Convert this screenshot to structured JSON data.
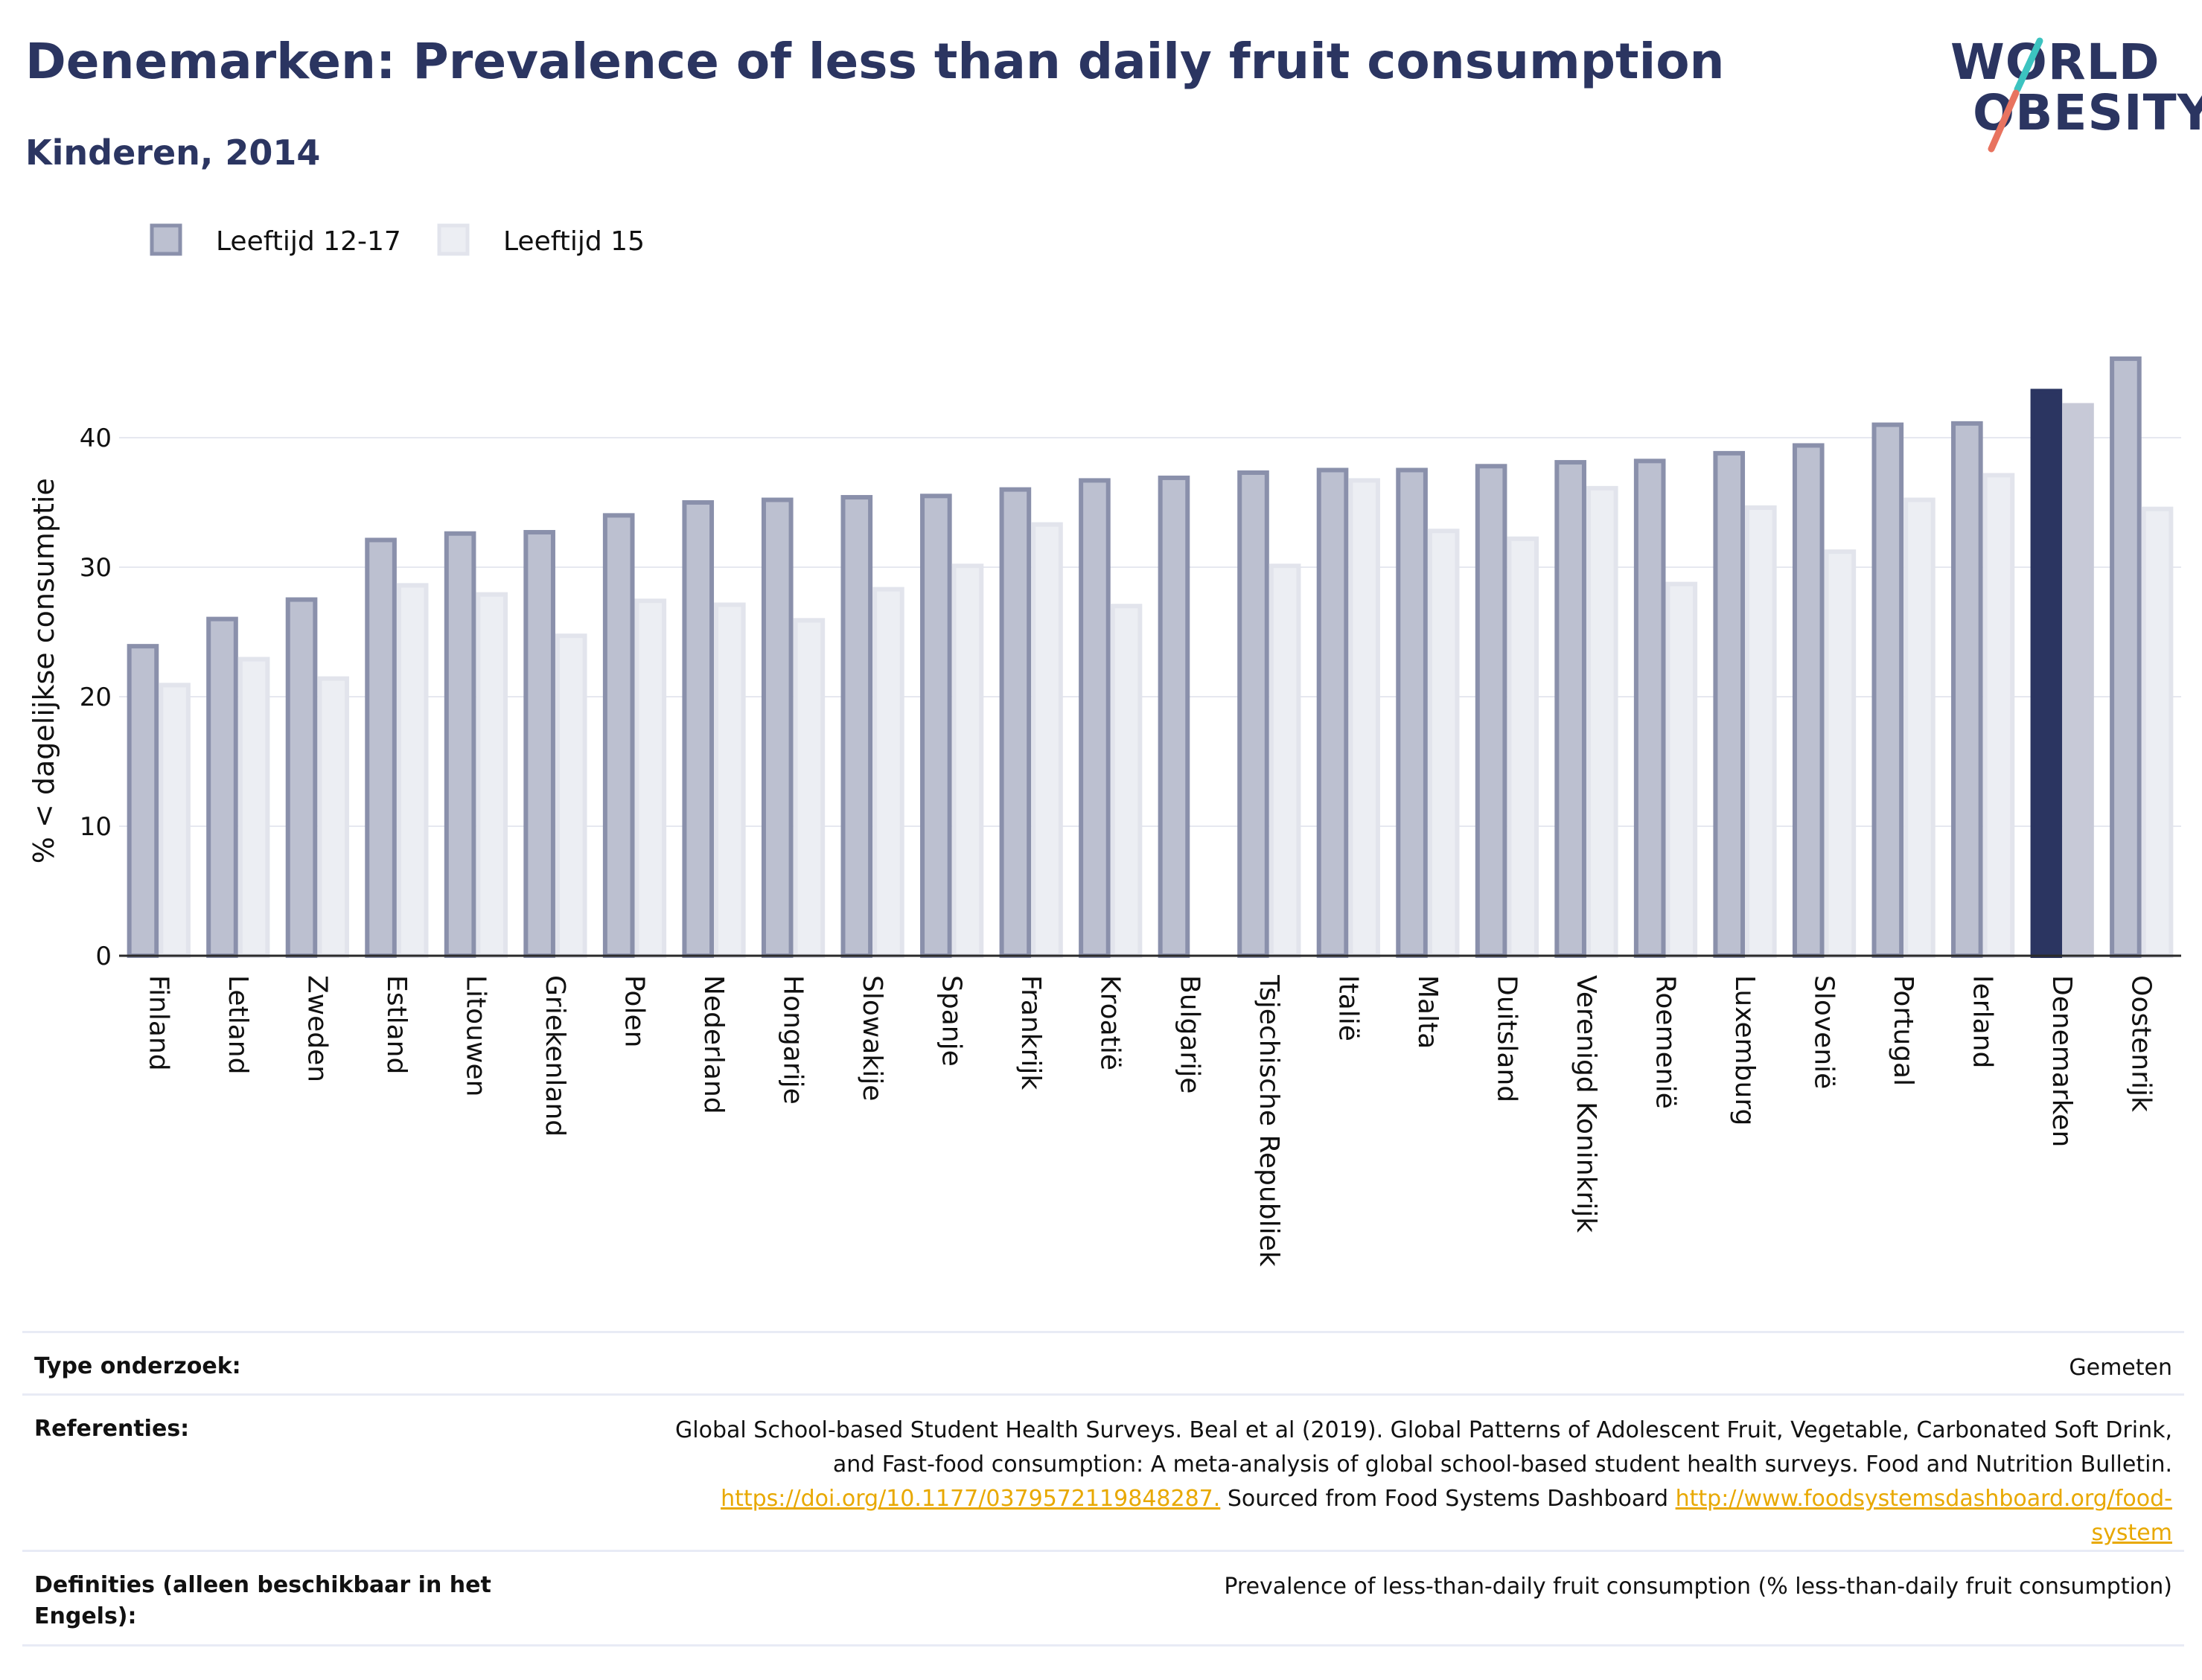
{
  "header": {
    "title": "Denemarken: Prevalence of less than daily fruit consumption",
    "subtitle": "Kinderen, 2014"
  },
  "logo": {
    "line1": "WORLD",
    "line2": "OBESITY",
    "colors": [
      "#2b3561",
      "#e8735f",
      "#3cc3c0"
    ]
  },
  "colors": {
    "series1_fill": "#bcc0d0",
    "series1_stroke": "#8a90ab",
    "series2_fill": "#eceef3",
    "series2_stroke": "#e2e4ec",
    "highlight1": "#2b3561",
    "highlight2": "#c7c9d7",
    "grid": "#e6e8f0",
    "axis": "#2a2a2a"
  },
  "chart_data": {
    "type": "bar",
    "ylabel": "% < dagelijkse consumptie",
    "ylim": [
      0,
      48
    ],
    "yticks": [
      0,
      10,
      20,
      30,
      40
    ],
    "legend_position": "top-left",
    "highlight_category": "Denemarken",
    "categories": [
      "Finland",
      "Letland",
      "Zweden",
      "Estland",
      "Litouwen",
      "Griekenland",
      "Polen",
      "Nederland",
      "Hongarije",
      "Slowakije",
      "Spanje",
      "Frankrijk",
      "Kroatië",
      "Bulgarije",
      "Tsjechische Republiek",
      "Italië",
      "Malta",
      "Duitsland",
      "Verenigd Koninkrijk",
      "Roemenië",
      "Luxemburg",
      "Slovenië",
      "Portugal",
      "Ierland",
      "Denemarken",
      "Oostenrijk"
    ],
    "series": [
      {
        "name": "Leeftijd 12-17",
        "values": [
          23.9,
          26.0,
          27.5,
          32.1,
          32.6,
          32.7,
          34.0,
          35.0,
          35.2,
          35.4,
          35.5,
          36.0,
          36.7,
          36.9,
          37.3,
          37.5,
          37.5,
          37.8,
          38.1,
          38.2,
          38.8,
          39.4,
          41.0,
          41.1,
          43.6,
          46.1
        ]
      },
      {
        "name": "Leeftijd 15",
        "values": [
          20.9,
          22.9,
          21.4,
          28.6,
          27.9,
          24.7,
          27.4,
          27.1,
          25.9,
          28.3,
          30.1,
          33.3,
          27.0,
          null,
          30.1,
          36.7,
          32.8,
          32.2,
          36.1,
          28.7,
          34.6,
          31.2,
          35.2,
          37.1,
          42.5,
          34.5
        ]
      }
    ]
  },
  "meta": {
    "type_label": "Type onderzoek:",
    "type_value": "Gemeten",
    "ref_label": "Referenties:",
    "ref_text1": "Global School-based Student Health Surveys. Beal et al (2019). Global Patterns of Adolescent Fruit, Vegetable, Carbonated Soft Drink,",
    "ref_text2": "and Fast-food consumption: A meta-analysis of global school-based student health surveys. Food and Nutrition Bulletin.",
    "ref_link1": "https://doi.org/10.1177/0379572119848287.",
    "ref_mid": " Sourced from Food Systems Dashboard ",
    "ref_link2a": "http://www.foodsystemsdashboard.org/food-",
    "ref_link2b": "system",
    "def_label": "Definities (alleen beschikbaar in het Engels):",
    "def_value": "Prevalence of less-than-daily fruit consumption (% less-than-daily fruit consumption)"
  }
}
